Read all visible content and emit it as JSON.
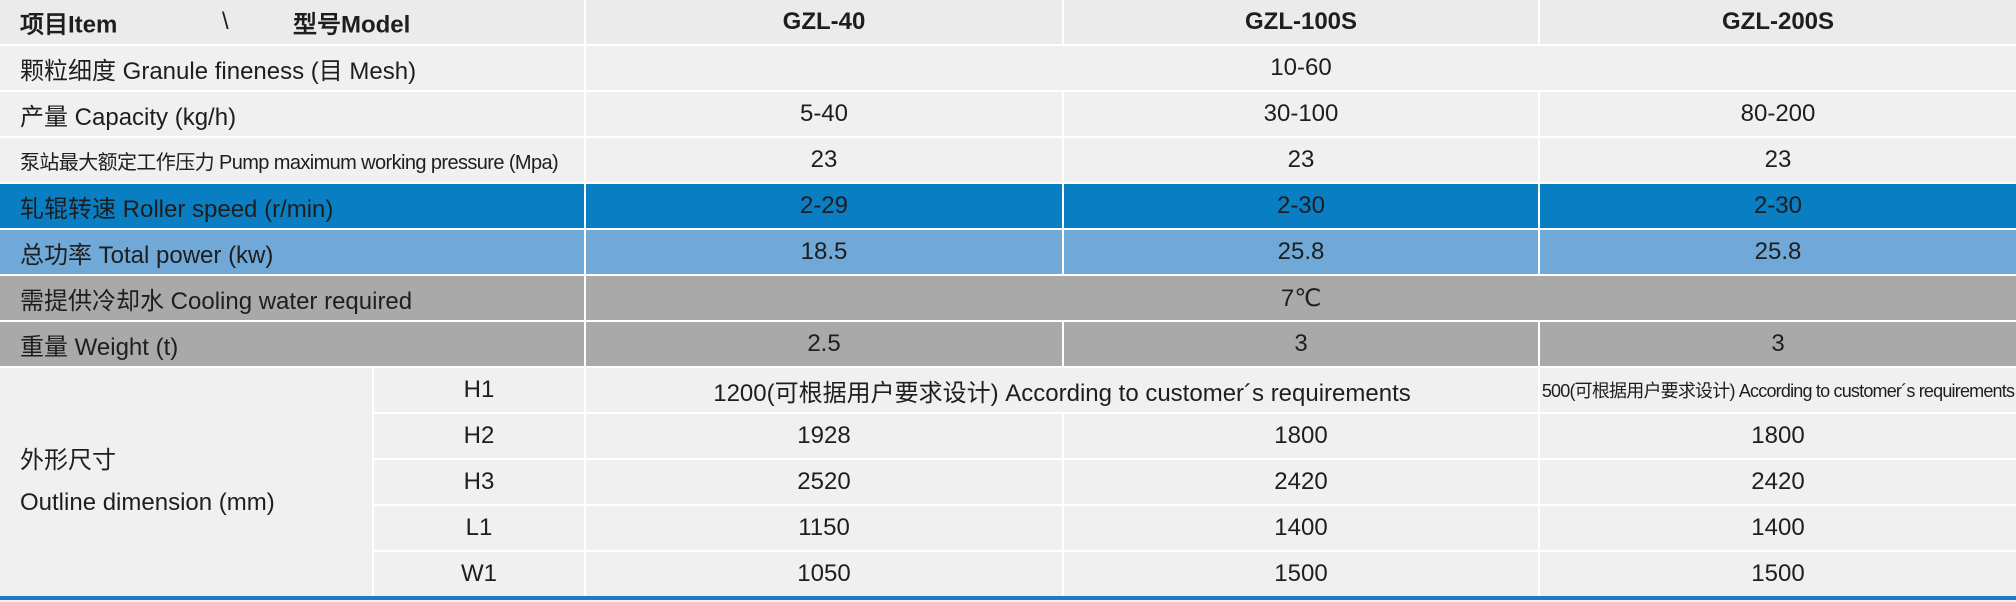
{
  "header": {
    "item": "项目Item",
    "separator": "\\",
    "model": "型号Model",
    "models": [
      "GZL-40",
      "GZL-100S",
      "GZL-200S"
    ]
  },
  "rows": [
    {
      "label": "颗粒细度 Granule fineness (目 Mesh)",
      "values": [
        "10-60"
      ]
    },
    {
      "label": "产量 Capacity (kg/h)",
      "values": [
        "5-40",
        "30-100",
        "80-200"
      ]
    },
    {
      "label": "泵站最大额定工作压力 Pump maximum working pressure (Mpa)",
      "values": [
        "23",
        "23",
        "23"
      ]
    },
    {
      "label": "轧辊转速 Roller speed (r/min)",
      "values": [
        "2-29",
        "2-30",
        "2-30"
      ]
    },
    {
      "label": "总功率 Total power (kw)",
      "values": [
        "18.5",
        "25.8",
        "25.8"
      ]
    },
    {
      "label": "需提供冷却水 Cooling water required",
      "values": [
        "7℃"
      ]
    },
    {
      "label": "重量 Weight (t)",
      "values": [
        "2.5",
        "3",
        "3"
      ]
    }
  ],
  "dimension": {
    "label_cn": "外形尺寸",
    "label_en": "Outline dimension (mm)",
    "rows": [
      {
        "label": "H1",
        "values": [
          "1200(可根据用户要求设计) According to customer´s requirements",
          "500(可根据用户要求设计) According to customer´s requirements"
        ]
      },
      {
        "label": "H2",
        "values": [
          "1928",
          "1800",
          "1800"
        ]
      },
      {
        "label": "H3",
        "values": [
          "2520",
          "2420",
          "2420"
        ]
      },
      {
        "label": "L1",
        "values": [
          "1150",
          "1400",
          "1400"
        ]
      },
      {
        "label": "W1",
        "values": [
          "1050",
          "1500",
          "1500"
        ]
      }
    ]
  }
}
